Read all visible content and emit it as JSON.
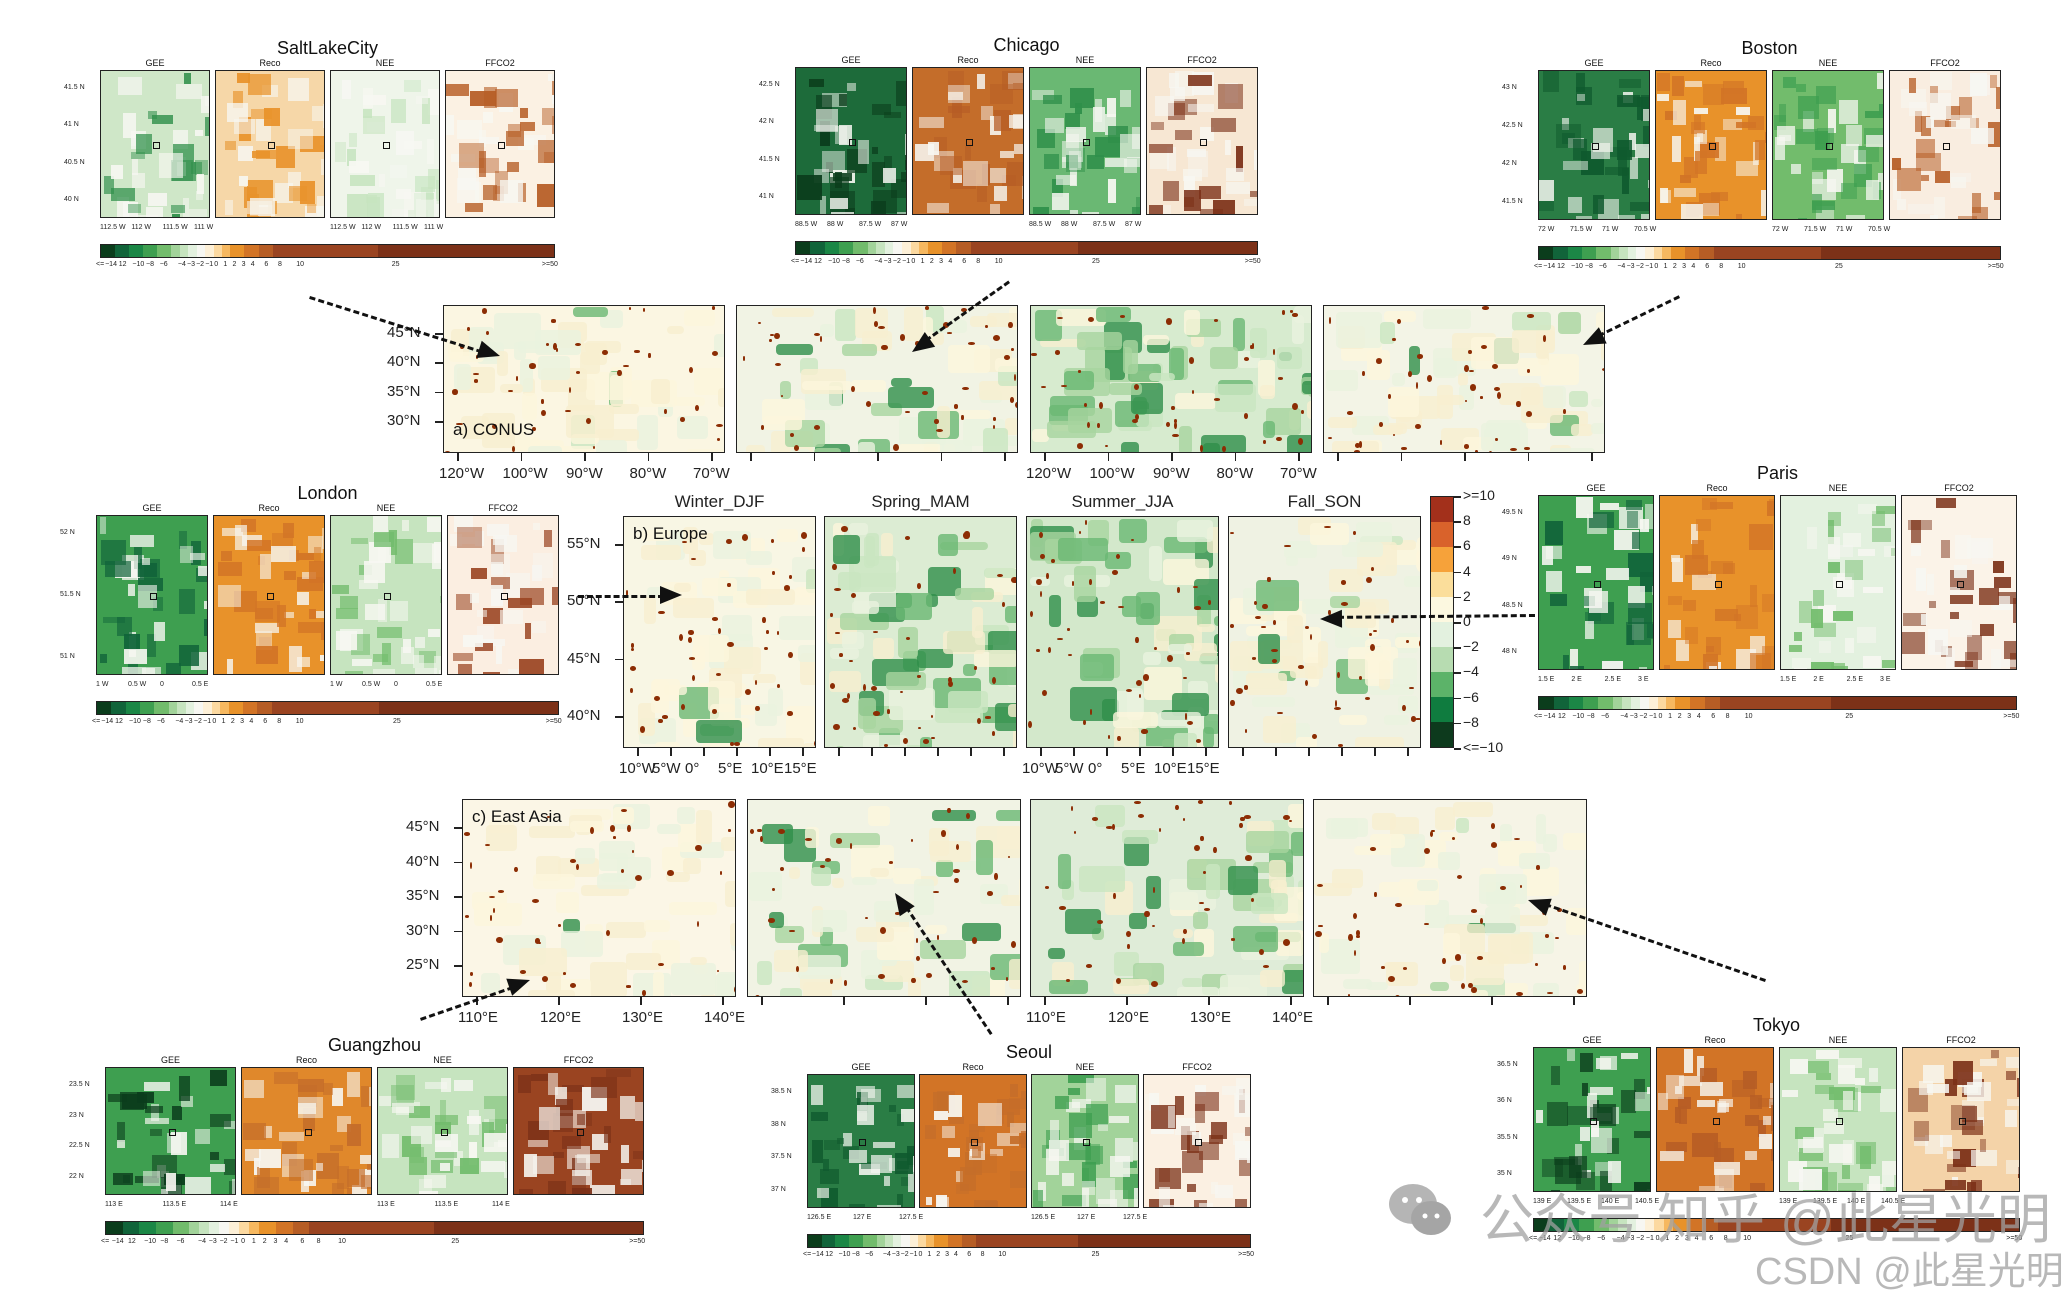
{
  "figure": {
    "regions": [
      {
        "id": "conus",
        "label": "a) CONUS",
        "y_ticks": [
          "45°N",
          "40°N",
          "35°N",
          "30°N"
        ],
        "x_ticks": [
          "120°W",
          "100°W",
          "90°W",
          "80°W",
          "70°W"
        ]
      },
      {
        "id": "europe",
        "label": "b) Europe",
        "y_ticks": [
          "55°N",
          "50°N",
          "45°N",
          "40°N"
        ],
        "x_ticks": [
          "10°W",
          "5°W",
          "0°",
          "5°E",
          "10°E",
          "15°E"
        ]
      },
      {
        "id": "eastasia",
        "label": "c) East Asia",
        "y_ticks": [
          "45°N",
          "40°N",
          "35°N",
          "30°N",
          "25°N"
        ],
        "x_ticks": [
          "110°E",
          "120°E",
          "130°E",
          "140°E"
        ]
      }
    ],
    "seasons": [
      "Winter_DJF",
      "Spring_MAM",
      "Summer_JJA",
      "Fall_SON"
    ],
    "main_colorbar": {
      "labels": [
        ">=10",
        "8",
        "6",
        "4",
        "2",
        "0",
        "−2",
        "−4",
        "−6",
        "−8",
        "<=−10"
      ],
      "colors": [
        "#a3301b",
        "#d9622b",
        "#f6a23a",
        "#fbde9b",
        "#fcf8e0",
        "#e3f1df",
        "#b7dcb1",
        "#5cb369",
        "#0f7c3f",
        "#0d3a1d"
      ]
    },
    "city_panels": {
      "sub_titles": [
        "GEE",
        "Reco",
        "NEE",
        "FFCO2"
      ],
      "colorbar_labels": [
        "<=",
        "−14",
        "12",
        "−10",
        "−8",
        "−6",
        "−4",
        "−3",
        "−2",
        "−1",
        "0",
        "1",
        "2",
        "3",
        "4",
        "6",
        "8",
        "10",
        "25",
        ">=50"
      ],
      "colorbar_colors": [
        "#0b3d1c",
        "#11643a",
        "#1b8746",
        "#3e9f50",
        "#72bc6c",
        "#a2d39a",
        "#c6e4bf",
        "#e3f1df",
        "#f7f7f2",
        "#fdf0d7",
        "#fcd9a0",
        "#f6b860",
        "#e8922a",
        "#d27426",
        "#b65d25",
        "#9a4421",
        "#7c3118"
      ],
      "cities": [
        {
          "name": "SaltLakeCity",
          "y_ticks": [
            "41.5 N",
            "41 N",
            "40.5 N",
            "40 N"
          ],
          "x_ticks": [
            "112.5 W",
            "112 W",
            "111.5 W",
            "111 W"
          ]
        },
        {
          "name": "Chicago",
          "y_ticks": [
            "42.5 N",
            "42 N",
            "41.5 N",
            "41 N"
          ],
          "x_ticks": [
            "88.5 W",
            "88 W",
            "87.5 W",
            "87 W"
          ]
        },
        {
          "name": "Boston",
          "y_ticks": [
            "43 N",
            "42.5 N",
            "42 N",
            "41.5 N"
          ],
          "x_ticks": [
            "72 W",
            "71.5 W",
            "71 W",
            "70.5 W"
          ]
        },
        {
          "name": "London",
          "y_ticks": [
            "52 N",
            "51.5 N",
            "51 N"
          ],
          "x_ticks": [
            "1 W",
            "0.5 W",
            "0",
            "0.5 E"
          ]
        },
        {
          "name": "Paris",
          "y_ticks": [
            "49.5 N",
            "49 N",
            "48.5 N",
            "48 N"
          ],
          "x_ticks": [
            "1.5 E",
            "2 E",
            "2.5 E",
            "3 E"
          ]
        },
        {
          "name": "Guangzhou",
          "y_ticks": [
            "23.5 N",
            "23 N",
            "22.5 N",
            "22 N"
          ],
          "x_ticks": [
            "113 E",
            "113.5 E",
            "114 E"
          ]
        },
        {
          "name": "Seoul",
          "y_ticks": [
            "38.5 N",
            "38 N",
            "37.5 N",
            "37 N"
          ],
          "x_ticks": [
            "126.5 E",
            "127 E",
            "127.5 E"
          ]
        },
        {
          "name": "Tokyo",
          "y_ticks": [
            "36.5 N",
            "36 N",
            "35.5 N",
            "35 N"
          ],
          "x_ticks": [
            "139 E",
            "139.5 E",
            "140 E",
            "140.5 E"
          ]
        }
      ]
    },
    "watermark": {
      "line1": "公众号 知乎 @此星光明",
      "line2": "CSDN @此星光明"
    }
  }
}
